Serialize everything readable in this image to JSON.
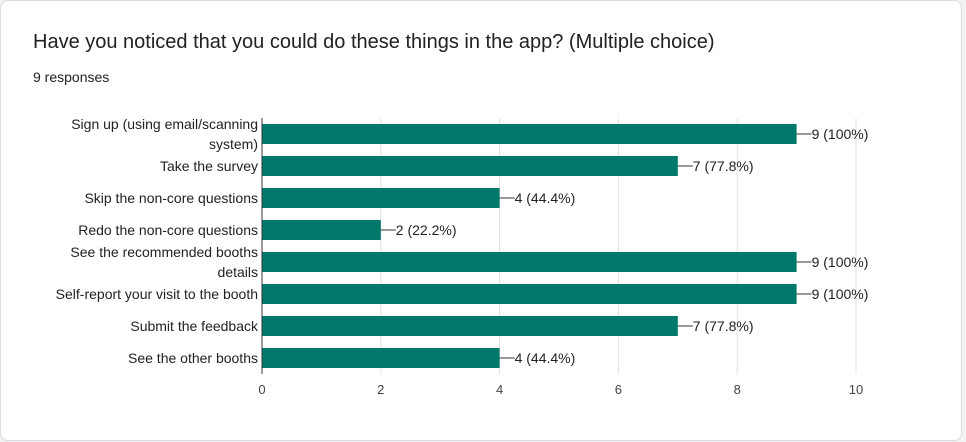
{
  "card": {
    "title": "Have you noticed that you could do these things in the app? (Multiple choice)",
    "responses": "9 responses"
  },
  "colors": {
    "bar": "#00796b",
    "grid": "#e0e0e0",
    "axis": "#333333"
  },
  "chart_data": {
    "type": "bar",
    "orientation": "horizontal",
    "categories": [
      "Sign up (using email/scanning system)",
      "Take the survey",
      "Skip the non-core questions",
      "Redo the non-core questions",
      "See the recommended booths details",
      "Self-report your visit to the booth",
      "Submit the feedback",
      "See the other booths"
    ],
    "category_lines": [
      [
        "Sign up (using email/scanning",
        "system)"
      ],
      [
        "Take the survey"
      ],
      [
        "Skip the non-core questions"
      ],
      [
        "Redo the non-core questions"
      ],
      [
        "See the recommended booths",
        "details"
      ],
      [
        "Self-report your visit to the booth"
      ],
      [
        "Submit the feedback"
      ],
      [
        "See the other booths"
      ]
    ],
    "values": [
      9,
      7,
      4,
      2,
      9,
      9,
      7,
      4
    ],
    "data_labels": [
      "9 (100%)",
      "7 (77.8%)",
      "4 (44.4%)",
      "2 (22.2%)",
      "9 (100%)",
      "9 (100%)",
      "7 (77.8%)",
      "4 (44.4%)"
    ],
    "x_ticks": [
      0,
      2,
      4,
      6,
      8,
      10
    ],
    "xlim": [
      0,
      10
    ],
    "grid": true
  }
}
